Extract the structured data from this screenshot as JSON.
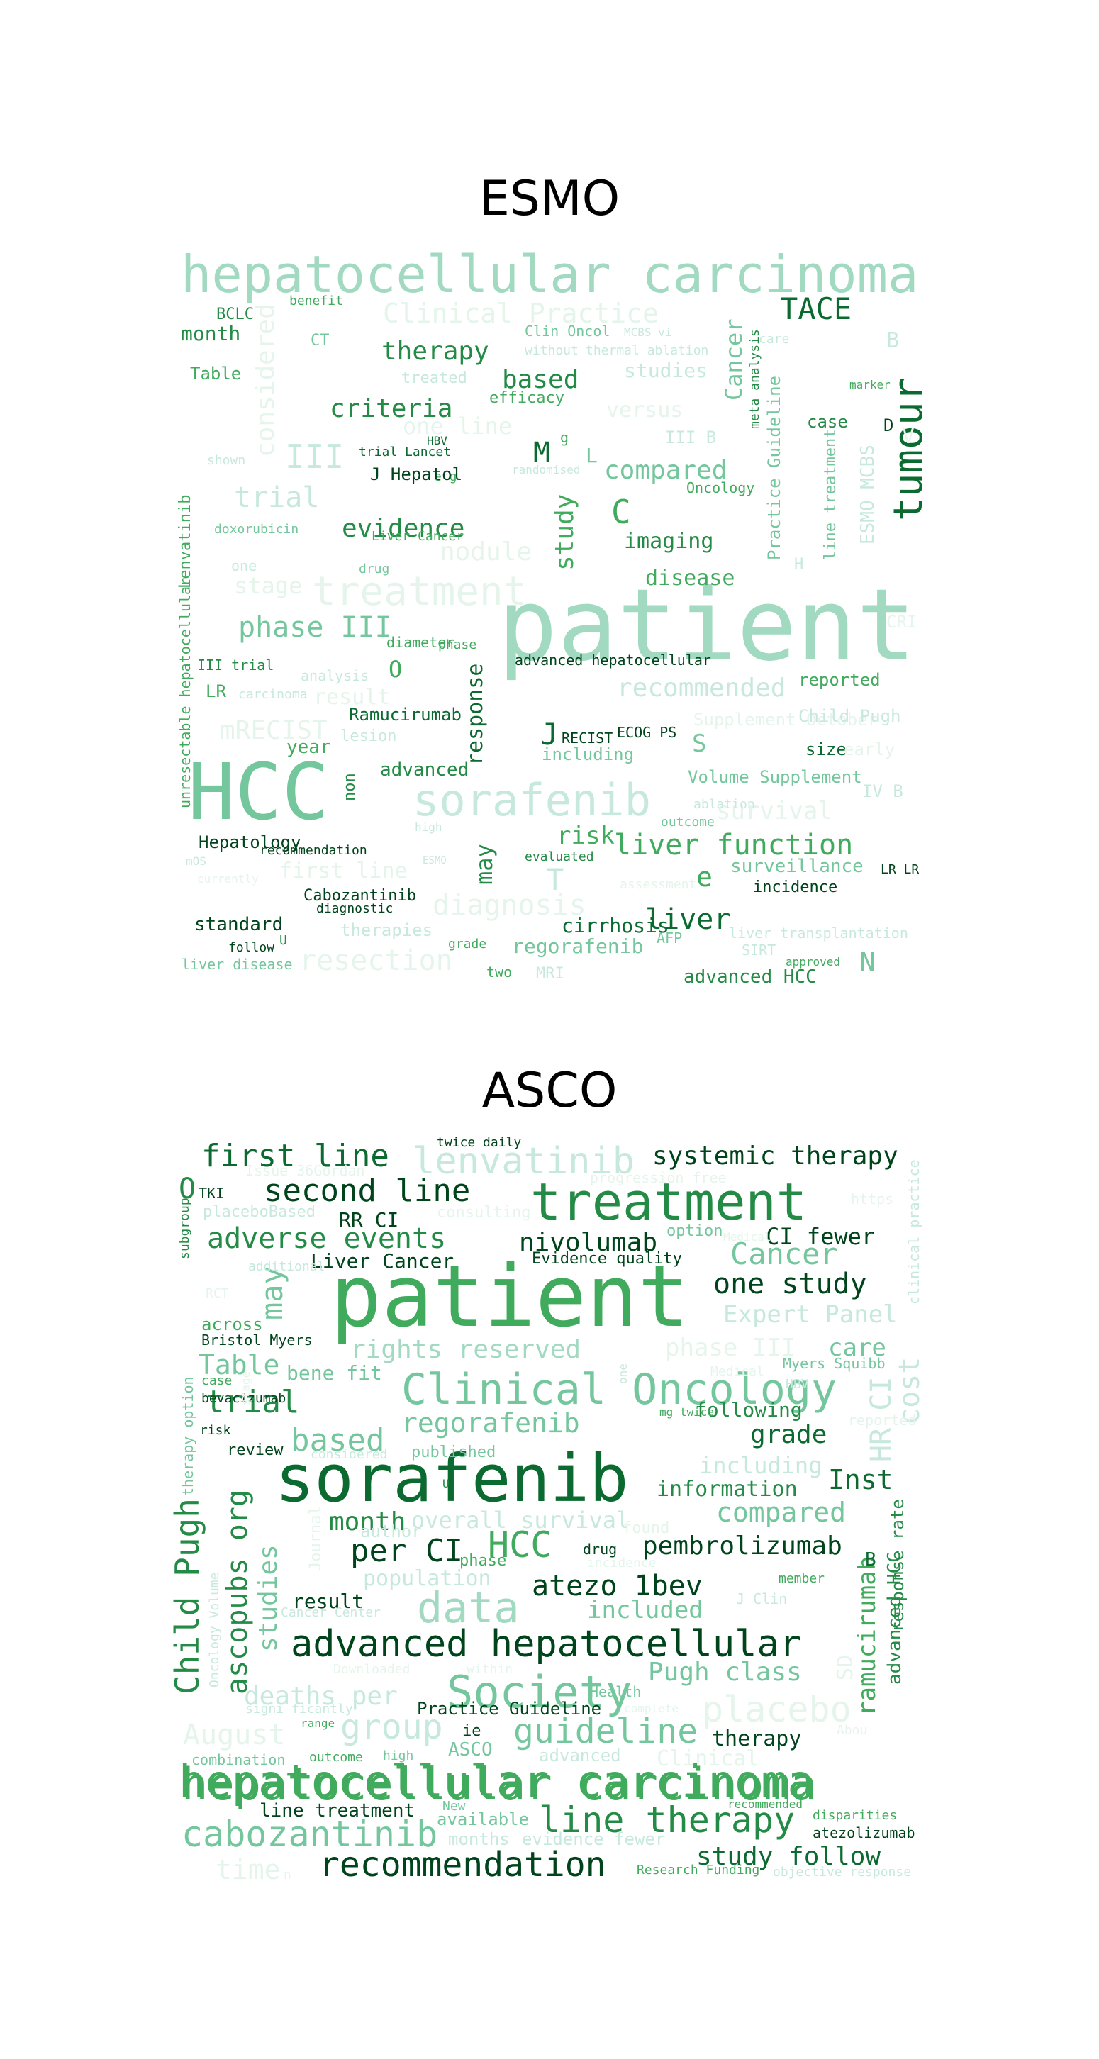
{
  "panels": [
    {
      "title": "ESMO",
      "words": [
        "hepatocellular carcinoma",
        "patient",
        "HCC",
        "sorafenib",
        "treatment",
        "tumour",
        "TACE",
        "Clinical Practice",
        "therapy",
        "criteria",
        "based",
        "evidence",
        "phase III",
        "trial",
        "compared",
        "study",
        "response",
        "liver function",
        "liver",
        "resection",
        "diagnosis",
        "recommended",
        "survival",
        "risk",
        "may",
        "nodule",
        "imaging",
        "disease",
        "stage",
        "first line",
        "year",
        "advanced",
        "result",
        "mRECIST",
        "III",
        "M",
        "C",
        "J",
        "T",
        "e",
        "S",
        "N",
        "O",
        "Volume Supplement",
        "Supplement October",
        "Child Pugh",
        "size",
        "early",
        "IV B",
        "reported",
        "Lenvatinib",
        "unresectable hepatocellular",
        "considered",
        "month",
        "BCLC",
        "Table",
        "CT",
        "benefit",
        "Clin Oncol",
        "MCBS vi",
        "thermal ablation",
        "care",
        "without",
        "treated",
        "studies",
        "efficacy",
        "versus",
        "one line",
        "HBV",
        "e g",
        "trial Lancet",
        "J Hepatol",
        "randomised",
        "III B",
        "Cancer",
        "meta analysis",
        "case",
        "marker",
        "D",
        "V",
        "H",
        "B",
        "Oncology",
        "Practice Guideline",
        "line treatment",
        "ESMO MCBS",
        "CRI",
        "shown",
        "doxorubicin",
        "Liver Cancer",
        "drug",
        "one",
        "phase",
        "diameter",
        "advanced hepatocellular",
        "analysis",
        "carcinoma",
        "III trial",
        "LR",
        "Ramucirumab",
        "lesion",
        "RECIST",
        "ECOG PS",
        "including",
        "ablation",
        "outcome",
        "non",
        "Hepatology",
        "recommendation",
        "mOS",
        "currently",
        "Cabozantinib",
        "diagnostic",
        "standard",
        "follow",
        "U",
        "liver disease",
        "therapies",
        "grade",
        "two",
        "MRI",
        "regorafenib",
        "AFP",
        "SIRT",
        "approved",
        "cirrhosis",
        "advanced HCC",
        "liver transplantation",
        "surveillance",
        "incidence",
        "LR LR",
        "evaluated",
        "assessment",
        "high",
        "ESMO",
        "L",
        "g"
      ]
    },
    {
      "title": "ASCO",
      "words": [
        "patient",
        "sorafenib",
        "treatment",
        "hepatocellular carcinoma",
        "Clinical Oncology",
        "advanced hepatocellular",
        "lenvatinib",
        "first line",
        "second line",
        "systemic therapy",
        "adverse events",
        "nivolumab",
        "Cancer",
        "one study",
        "CI fewer",
        "Liver Cancer",
        "Evidence quality",
        "RR CI",
        "twice daily",
        "Issue 36Gordan",
        "progression free",
        "TKI",
        "O",
        "placeboBased",
        "consulting",
        "option",
        "https",
        "subgroup",
        "may",
        "Expert Panel",
        "rights reserved",
        "phase III",
        "care",
        "Table",
        "bene fit",
        "trial",
        "regorafenib",
        "based",
        "following",
        "grade",
        "published",
        "including",
        "information",
        "Inst",
        "month",
        "per CI",
        "HCC",
        "compared",
        "pembrolizumab",
        "data",
        "atezo 1bev",
        "included",
        "Child Pugh",
        "ascopubs org",
        "studies",
        "result",
        "overall survival",
        "population",
        "Society",
        "Pugh class",
        "guideline",
        "therapy",
        "group",
        "deaths per",
        "August",
        "placebo",
        "hepatocellular carcinoma",
        "cabozantinib",
        "line therapy",
        "recommendation",
        "study follow",
        "line treatment",
        "available",
        "atezolizumab",
        "disparities",
        "Research Funding",
        "objective response",
        "months",
        "evidence fewer",
        "ramucirumab",
        "advanced HCC",
        "response rate",
        "cost",
        "HR CI",
        "clinical practice",
        "Bristol Myers",
        "Myers Squibb",
        "HBV",
        "Medical",
        "mg twice",
        "reported",
        "RCT",
        "across",
        "case",
        "bevacizumab",
        "risk",
        "review",
        "considered",
        "U",
        "author",
        "Journal",
        "phase",
        "drug",
        "found",
        "incidence",
        "J Clin",
        "member",
        "B",
        "Cancer Center",
        "Oncology Volume",
        "within",
        "Downloaded",
        "signi ficantly",
        "range",
        "Health",
        "complete",
        "Practice Guideline",
        "ASCO",
        "ie",
        "Clinical",
        "combination",
        "outcome",
        "high",
        "advanced",
        "New",
        "recommended",
        "time",
        "n",
        "stage",
        "therapy option",
        "additional",
        "one",
        "Abou",
        "SD",
        "Medical"
      ]
    }
  ],
  "colors": {
    "darkest": "#00441b",
    "dark": "#0b6a30",
    "mid_dark": "#238b45",
    "mid": "#41ab5d",
    "mid_light": "#74c69d",
    "light": "#a1d9c1",
    "lighter": "#c7e9dd",
    "lightest": "#e5f5ec"
  }
}
